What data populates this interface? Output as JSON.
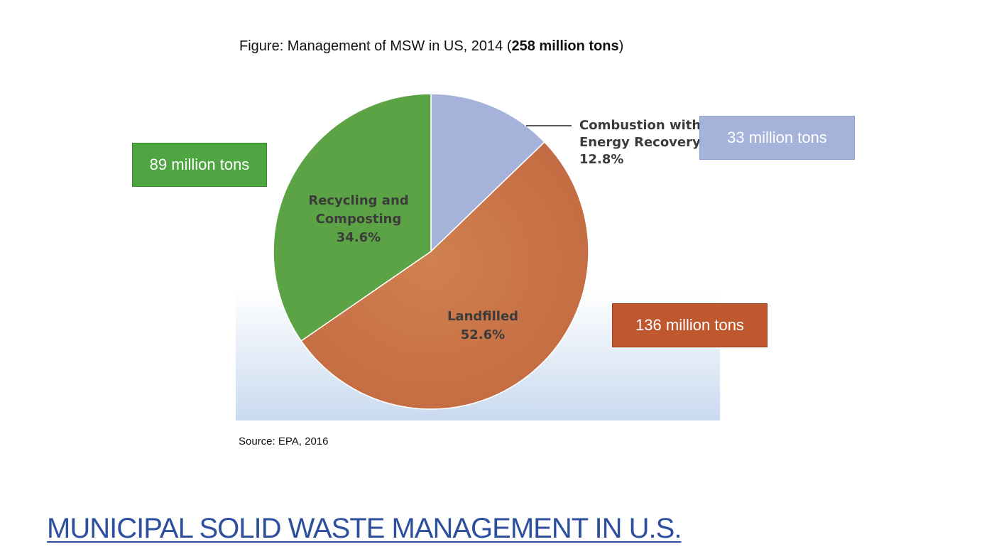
{
  "figure": {
    "caption_prefix": "Figure: Management of MSW in US, 2014 (",
    "caption_bold": "258 million tons",
    "caption_suffix": ")"
  },
  "chart_data": {
    "type": "pie",
    "title": "Figure: Management of MSW in US, 2014 (258 million tons)",
    "total": "258 million tons",
    "slices": [
      {
        "name": "Combustion with Energy Recovery",
        "label_lines": [
          "Combustion with",
          "Energy Recovery"
        ],
        "percent_label": "12.8%",
        "value": 12.8,
        "tons_label": "33 million tons",
        "color": "#a5b2da",
        "box_color": "#a5b2da"
      },
      {
        "name": "Landfilled",
        "label_lines": [
          "Landfilled"
        ],
        "percent_label": "52.6%",
        "value": 52.6,
        "tons_label": "136 million tons",
        "color": "#c5704a",
        "box_color": "#c0582f"
      },
      {
        "name": "Recycling and Composting",
        "label_lines": [
          "Recycling and",
          "Composting"
        ],
        "percent_label": "34.6%",
        "value": 34.6,
        "tons_label": "89 million tons",
        "color": "#5ca345",
        "box_color": "#4ea542"
      }
    ]
  },
  "source": "Source: EPA, 2016",
  "slide_title": "MUNICIPAL SOLID WASTE MANAGEMENT IN U.S."
}
